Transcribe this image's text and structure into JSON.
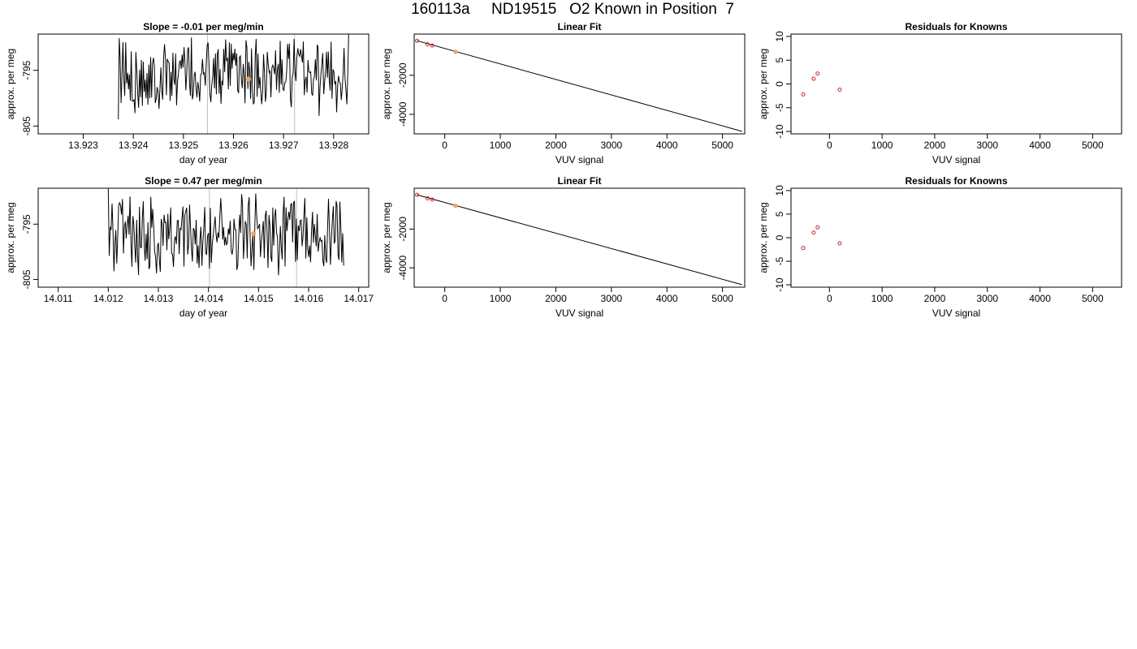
{
  "page_title": "160113a     ND19515   O2 Known in Position  7",
  "chart_data": [
    {
      "id": "ts1",
      "type": "line",
      "title": "Slope =  -0.01  per meg/min",
      "xlabel": "day of year",
      "ylabel": "approx. per meg",
      "xlim": [
        13.9221,
        13.9287
      ],
      "ylim": [
        -806.4,
        -788.5
      ],
      "xticks": [
        "13.923",
        "13.924",
        "13.925",
        "13.926",
        "13.927",
        "13.928"
      ],
      "yticks": [
        "-795",
        "-805"
      ],
      "x_start": 13.9237,
      "x_end": 13.9283,
      "y_start": -803.8,
      "y_end": -788.5,
      "n_points": 250,
      "mean": -795.8,
      "amplitude": 4.8,
      "marker_highlight": {
        "x": 13.9263,
        "y": -796.6,
        "color": "#f4a460"
      },
      "vlines": [
        13.92548,
        13.92722
      ],
      "line_color": "#000000"
    },
    {
      "id": "fit1",
      "type": "scatter",
      "title": "Linear Fit",
      "xlabel": "VUV signal",
      "ylabel": "approx. per meg",
      "xlim": [
        -550,
        5400
      ],
      "ylim": [
        -5000,
        110
      ],
      "xticks": [
        "0",
        "1000",
        "2000",
        "3000",
        "4000",
        "5000"
      ],
      "yticks": [
        "-2000",
        "-4000"
      ],
      "fit_line": {
        "x": [
          -500,
          5350
        ],
        "y": [
          -230,
          -4870
        ]
      },
      "points": [
        {
          "x": -498,
          "y": -232
        },
        {
          "x": -310,
          "y": -415
        },
        {
          "x": -225,
          "y": -478
        },
        {
          "x": 195,
          "y": -797
        }
      ],
      "highlight_point": {
        "x": 195,
        "y": -797
      },
      "point_color": "#cd2626",
      "highlight_color": "#f4a460"
    },
    {
      "id": "res1",
      "type": "scatter",
      "title": "Residuals for Knowns",
      "xlabel": "VUV signal",
      "ylabel": "approx. per meg",
      "xlim": [
        -730,
        5550
      ],
      "ylim": [
        -10.5,
        10.5
      ],
      "xticks": [
        "0",
        "1000",
        "2000",
        "3000",
        "4000",
        "5000"
      ],
      "yticks": [
        "10",
        "5",
        "0",
        "-5",
        "-10"
      ],
      "points": [
        {
          "x": -498,
          "y": -2.2
        },
        {
          "x": -300,
          "y": 1.1
        },
        {
          "x": -225,
          "y": 2.2
        },
        {
          "x": 195,
          "y": -1.2
        }
      ],
      "point_color": "#cd2626"
    },
    {
      "id": "ts2",
      "type": "line",
      "title": "Slope =  0.47  per meg/min",
      "xlabel": "day of year",
      "ylabel": "approx. per meg",
      "xlim": [
        14.0106,
        14.0172
      ],
      "ylim": [
        -806.4,
        -788.5
      ],
      "xticks": [
        "14.011",
        "14.012",
        "14.013",
        "14.014",
        "14.015",
        "14.016",
        "14.017"
      ],
      "yticks": [
        "-795",
        "-805"
      ],
      "x_start": 14.012,
      "x_end": 14.0167,
      "y_start": -788.5,
      "y_end": -802.5,
      "n_points": 250,
      "mean": -796.8,
      "amplitude": 5.0,
      "marker_highlight": {
        "x": 14.0149,
        "y": -796.7,
        "color": "#f4a460"
      },
      "vlines": [
        14.01402,
        14.01576
      ],
      "line_color": "#000000"
    },
    {
      "id": "fit2",
      "type": "scatter",
      "title": "Linear Fit",
      "xlabel": "VUV signal",
      "ylabel": "approx. per meg",
      "xlim": [
        -550,
        5400
      ],
      "ylim": [
        -5000,
        110
      ],
      "xticks": [
        "0",
        "1000",
        "2000",
        "3000",
        "4000",
        "5000"
      ],
      "yticks": [
        "-2000",
        "-4000"
      ],
      "fit_line": {
        "x": [
          -500,
          5350
        ],
        "y": [
          -230,
          -4870
        ]
      },
      "points": [
        {
          "x": -498,
          "y": -232
        },
        {
          "x": -310,
          "y": -415
        },
        {
          "x": -225,
          "y": -478
        },
        {
          "x": 195,
          "y": -797
        }
      ],
      "highlight_point": {
        "x": 195,
        "y": -797
      },
      "point_color": "#cd2626",
      "highlight_color": "#f4a460"
    },
    {
      "id": "res2",
      "type": "scatter",
      "title": "Residuals for Knowns",
      "xlabel": "VUV signal",
      "ylabel": "approx. per meg",
      "xlim": [
        -730,
        5550
      ],
      "ylim": [
        -10.5,
        10.5
      ],
      "xticks": [
        "0",
        "1000",
        "2000",
        "3000",
        "4000",
        "5000"
      ],
      "yticks": [
        "10",
        "5",
        "0",
        "-5",
        "-10"
      ],
      "points": [
        {
          "x": -498,
          "y": -2.2
        },
        {
          "x": -300,
          "y": 1.1
        },
        {
          "x": -225,
          "y": 2.2
        },
        {
          "x": 195,
          "y": -1.2
        }
      ],
      "point_color": "#cd2626"
    }
  ]
}
